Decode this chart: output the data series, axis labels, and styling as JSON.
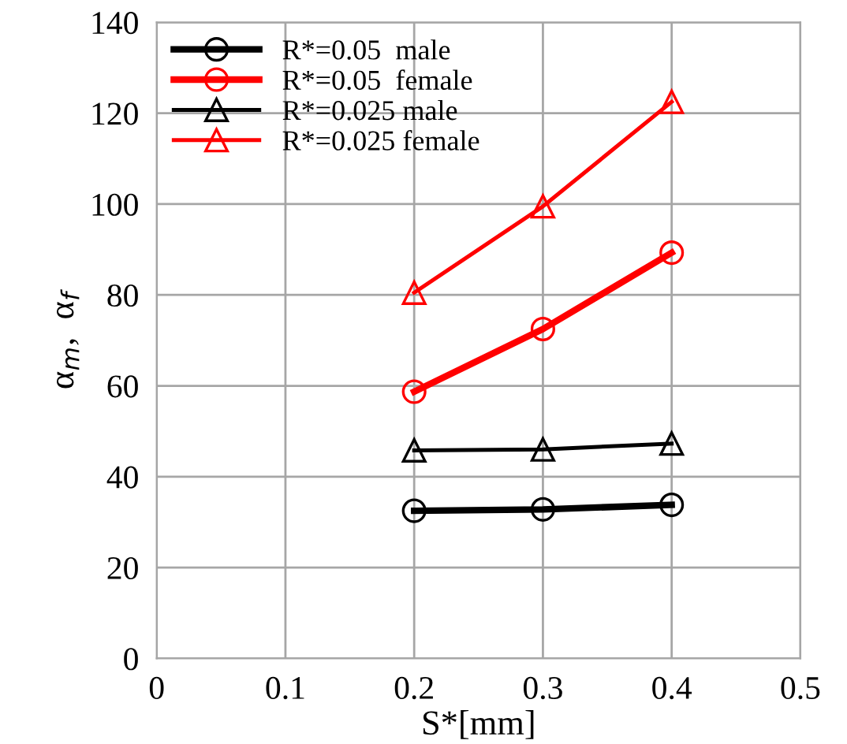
{
  "chart_data": {
    "type": "line",
    "xlabel": "S*[mm]",
    "ylabel": "α$_{m}$,  α$_{f}$",
    "x": [
      0.2,
      0.3,
      0.4
    ],
    "series": [
      {
        "name": "R*=0.05  male",
        "color": "#000000",
        "marker": "circle",
        "values": [
          32.5,
          32.8,
          33.8
        ]
      },
      {
        "name": "R*=0.05  female",
        "color": "#ff0000",
        "marker": "circle",
        "values": [
          58.7,
          72.5,
          89.3
        ]
      },
      {
        "name": "R*=0.025 male",
        "color": "#000000",
        "marker": "triangle",
        "values": [
          45.8,
          46.0,
          47.3
        ]
      },
      {
        "name": "R*=0.025 female",
        "color": "#ff0000",
        "marker": "triangle",
        "values": [
          80.5,
          99.5,
          122.5
        ]
      }
    ],
    "xlim": [
      0,
      0.5
    ],
    "xticks": [
      0,
      0.1,
      0.2,
      0.3,
      0.4,
      0.5
    ],
    "ylim": [
      0,
      140
    ],
    "yticks": [
      0,
      20,
      40,
      60,
      80,
      100,
      120,
      140
    ],
    "grid": true,
    "legend": "top left",
    "line_style": "solid"
  }
}
